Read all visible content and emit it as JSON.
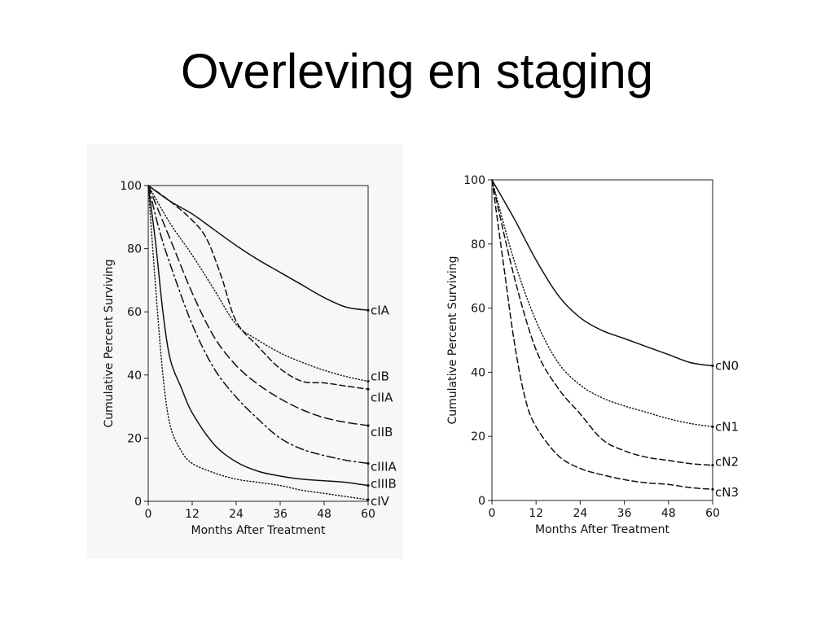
{
  "slide": {
    "title": "Overleving en staging"
  },
  "chart_data": [
    {
      "type": "line",
      "title": "",
      "xlabel": "Months After Treatment",
      "ylabel": "Cumulative Percent Surviving",
      "xlim": [
        0,
        60
      ],
      "ylim": [
        0,
        100
      ],
      "xticks": [
        0,
        12,
        24,
        36,
        48,
        60
      ],
      "yticks": [
        0,
        20,
        40,
        60,
        80,
        100
      ],
      "grid": false,
      "legend": "labels at right end of each curve",
      "series": [
        {
          "name": "cIA",
          "style": "solid",
          "points": [
            [
              0,
              100
            ],
            [
              6,
              95
            ],
            [
              12,
              91
            ],
            [
              18,
              86
            ],
            [
              24,
              81
            ],
            [
              30,
              76.5
            ],
            [
              36,
              72.5
            ],
            [
              42,
              68.5
            ],
            [
              48,
              64.5
            ],
            [
              54,
              61.5
            ],
            [
              60,
              60.5
            ]
          ]
        },
        {
          "name": "cIB",
          "style": "dotted",
          "points": [
            [
              0,
              100
            ],
            [
              6,
              88
            ],
            [
              12,
              78
            ],
            [
              18,
              67
            ],
            [
              24,
              56
            ],
            [
              30,
              51
            ],
            [
              36,
              47
            ],
            [
              42,
              44
            ],
            [
              48,
              41.5
            ],
            [
              54,
              39.5
            ],
            [
              60,
              38
            ]
          ]
        },
        {
          "name": "cIIA",
          "style": "dashed",
          "points": [
            [
              0,
              100
            ],
            [
              6,
              95
            ],
            [
              12,
              89
            ],
            [
              16,
              83
            ],
            [
              20,
              71
            ],
            [
              24,
              57
            ],
            [
              30,
              49
            ],
            [
              36,
              42
            ],
            [
              42,
              38
            ],
            [
              48,
              37.5
            ],
            [
              54,
              36.5
            ],
            [
              60,
              35.5
            ]
          ]
        },
        {
          "name": "cIIB",
          "style": "long-dash",
          "points": [
            [
              0,
              100
            ],
            [
              6,
              83
            ],
            [
              12,
              66
            ],
            [
              18,
              52
            ],
            [
              24,
              43
            ],
            [
              30,
              37
            ],
            [
              36,
              32.5
            ],
            [
              42,
              29
            ],
            [
              48,
              26.5
            ],
            [
              54,
              25
            ],
            [
              60,
              24
            ]
          ]
        },
        {
          "name": "cIIIA",
          "style": "dash-dot",
          "points": [
            [
              0,
              100
            ],
            [
              3,
              86
            ],
            [
              6,
              75
            ],
            [
              12,
              56
            ],
            [
              18,
              42
            ],
            [
              24,
              33
            ],
            [
              30,
              26
            ],
            [
              36,
              20
            ],
            [
              42,
              16.5
            ],
            [
              48,
              14.5
            ],
            [
              54,
              13
            ],
            [
              60,
              12
            ]
          ]
        },
        {
          "name": "cIIIB",
          "style": "solid",
          "points": [
            [
              0,
              100
            ],
            [
              2,
              82
            ],
            [
              4,
              60
            ],
            [
              6,
              45
            ],
            [
              9,
              36
            ],
            [
              12,
              28
            ],
            [
              18,
              18
            ],
            [
              24,
              12.5
            ],
            [
              30,
              9.5
            ],
            [
              36,
              8
            ],
            [
              42,
              7
            ],
            [
              48,
              6.5
            ],
            [
              54,
              6
            ],
            [
              60,
              5
            ]
          ]
        },
        {
          "name": "cIV",
          "style": "dotted",
          "points": [
            [
              0,
              100
            ],
            [
              2,
              68
            ],
            [
              4,
              40
            ],
            [
              6,
              24
            ],
            [
              9,
              16
            ],
            [
              12,
              12
            ],
            [
              18,
              9
            ],
            [
              24,
              7
            ],
            [
              30,
              6
            ],
            [
              36,
              5
            ],
            [
              42,
              3.5
            ],
            [
              48,
              2.5
            ],
            [
              54,
              1.5
            ],
            [
              60,
              0.5
            ]
          ]
        }
      ]
    },
    {
      "type": "line",
      "title": "",
      "xlabel": "Months After Treatment",
      "ylabel": "Cumulative Percent Surviving",
      "xlim": [
        0,
        60
      ],
      "ylim": [
        0,
        100
      ],
      "xticks": [
        0,
        12,
        24,
        36,
        48,
        60
      ],
      "yticks": [
        0,
        20,
        40,
        60,
        80,
        100
      ],
      "grid": false,
      "legend": "labels at right end of each curve",
      "series": [
        {
          "name": "cN0",
          "style": "solid",
          "points": [
            [
              0,
              100
            ],
            [
              6,
              88
            ],
            [
              12,
              75
            ],
            [
              18,
              64
            ],
            [
              24,
              57
            ],
            [
              30,
              53
            ],
            [
              36,
              50.5
            ],
            [
              42,
              48
            ],
            [
              48,
              45.5
            ],
            [
              54,
              43
            ],
            [
              60,
              42
            ]
          ]
        },
        {
          "name": "cN1",
          "style": "dotted",
          "points": [
            [
              0,
              100
            ],
            [
              6,
              75
            ],
            [
              12,
              56
            ],
            [
              18,
              43
            ],
            [
              24,
              36
            ],
            [
              30,
              32
            ],
            [
              36,
              29.5
            ],
            [
              42,
              27.5
            ],
            [
              48,
              25.5
            ],
            [
              54,
              24
            ],
            [
              60,
              23
            ]
          ]
        },
        {
          "name": "cN2",
          "style": "dashed",
          "points": [
            [
              0,
              100
            ],
            [
              6,
              70
            ],
            [
              12,
              47
            ],
            [
              18,
              35
            ],
            [
              24,
              27
            ],
            [
              30,
              19
            ],
            [
              36,
              15.5
            ],
            [
              42,
              13.5
            ],
            [
              48,
              12.5
            ],
            [
              54,
              11.5
            ],
            [
              60,
              11
            ]
          ]
        },
        {
          "name": "cN3",
          "style": "dashed",
          "points": [
            [
              0,
              100
            ],
            [
              3,
              75
            ],
            [
              6,
              50
            ],
            [
              9,
              32
            ],
            [
              12,
              23
            ],
            [
              18,
              14
            ],
            [
              24,
              10
            ],
            [
              30,
              8
            ],
            [
              36,
              6.5
            ],
            [
              42,
              5.5
            ],
            [
              48,
              5
            ],
            [
              54,
              4
            ],
            [
              60,
              3.5
            ]
          ]
        }
      ]
    }
  ]
}
